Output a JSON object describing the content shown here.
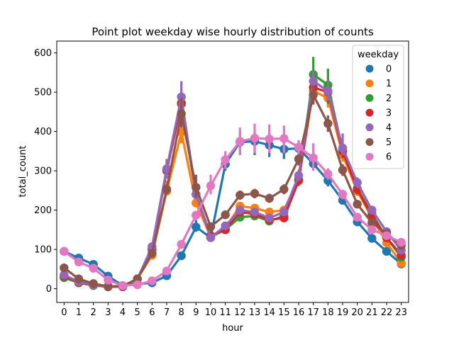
{
  "chart_data": {
    "type": "line",
    "title": "Point plot weekday wise hourly distribution of counts",
    "xlabel": "hour",
    "ylabel": "total_count",
    "x": [
      "0",
      "1",
      "2",
      "3",
      "4",
      "5",
      "6",
      "7",
      "8",
      "9",
      "10",
      "11",
      "12",
      "13",
      "14",
      "15",
      "16",
      "17",
      "18",
      "19",
      "20",
      "21",
      "22",
      "23"
    ],
    "ylim": [
      -35,
      630
    ],
    "yticks": [
      0,
      100,
      200,
      300,
      400,
      500,
      600
    ],
    "grid": false,
    "legend": {
      "title": "weekday",
      "placement": "top-right"
    },
    "series": [
      {
        "name": "0",
        "color": "#1f77b4",
        "values": [
          95,
          78,
          62,
          32,
          8,
          12,
          15,
          33,
          84,
          157,
          130,
          317,
          373,
          375,
          365,
          355,
          357,
          318,
          275,
          225,
          170,
          128,
          95,
          63
        ]
      },
      {
        "name": "1",
        "color": "#ff7f0e",
        "values": [
          30,
          15,
          10,
          6,
          6,
          25,
          85,
          248,
          398,
          218,
          132,
          155,
          210,
          205,
          195,
          200,
          278,
          503,
          485,
          340,
          248,
          180,
          117,
          65
        ]
      },
      {
        "name": "2",
        "color": "#2ca02c",
        "values": [
          28,
          15,
          8,
          5,
          5,
          24,
          102,
          303,
          473,
          240,
          132,
          150,
          182,
          185,
          172,
          185,
          278,
          545,
          518,
          352,
          255,
          190,
          130,
          80
        ]
      },
      {
        "name": "3",
        "color": "#d62728",
        "values": [
          32,
          16,
          10,
          5,
          5,
          25,
          100,
          300,
          470,
          240,
          135,
          150,
          195,
          190,
          175,
          180,
          275,
          512,
          500,
          350,
          253,
          185,
          130,
          85
        ]
      },
      {
        "name": "4",
        "color": "#9467bd",
        "values": [
          35,
          18,
          10,
          6,
          6,
          25,
          107,
          305,
          488,
          240,
          130,
          160,
          200,
          195,
          180,
          195,
          288,
          528,
          503,
          358,
          270,
          200,
          145,
          98
        ]
      },
      {
        "name": "5",
        "color": "#8c564b",
        "values": [
          53,
          25,
          13,
          6,
          7,
          25,
          90,
          253,
          445,
          258,
          158,
          188,
          238,
          242,
          230,
          253,
          330,
          493,
          420,
          302,
          215,
          168,
          140,
          110
        ]
      },
      {
        "name": "6",
        "color": "#e377c2",
        "values": [
          95,
          68,
          52,
          22,
          8,
          10,
          20,
          45,
          113,
          187,
          262,
          328,
          375,
          383,
          381,
          382,
          360,
          333,
          292,
          240,
          182,
          150,
          135,
          118
        ]
      }
    ],
    "errors": {
      "5": {
        "8": [
          410,
          485
        ],
        "9": [
          232,
          290
        ]
      },
      "6": {
        "13": [
          345,
          420
        ],
        "14": [
          345,
          418
        ],
        "15": [
          345,
          415
        ],
        "12": [
          340,
          410
        ],
        "11": [
          305,
          350
        ],
        "10": [
          240,
          290
        ],
        "17": [
          300,
          370
        ]
      },
      "2": {
        "17": [
          470,
          590
        ],
        "18": [
          470,
          560
        ],
        "8": [
          445,
          495
        ],
        "7": [
          285,
          330
        ]
      },
      "4": {
        "8": [
          455,
          528
        ],
        "7": [
          280,
          330
        ],
        "19": [
          340,
          395
        ]
      },
      "1": {
        "8": [
          370,
          430
        ],
        "7": [
          245,
          275
        ],
        "17": [
          470,
          530
        ]
      },
      "0": {
        "12": [
          340,
          400
        ],
        "13": [
          340,
          400
        ],
        "14": [
          335,
          395
        ],
        "15": [
          330,
          385
        ],
        "9": [
          145,
          175
        ],
        "11": [
          300,
          335
        ],
        "18": [
          260,
          295
        ]
      }
    }
  }
}
